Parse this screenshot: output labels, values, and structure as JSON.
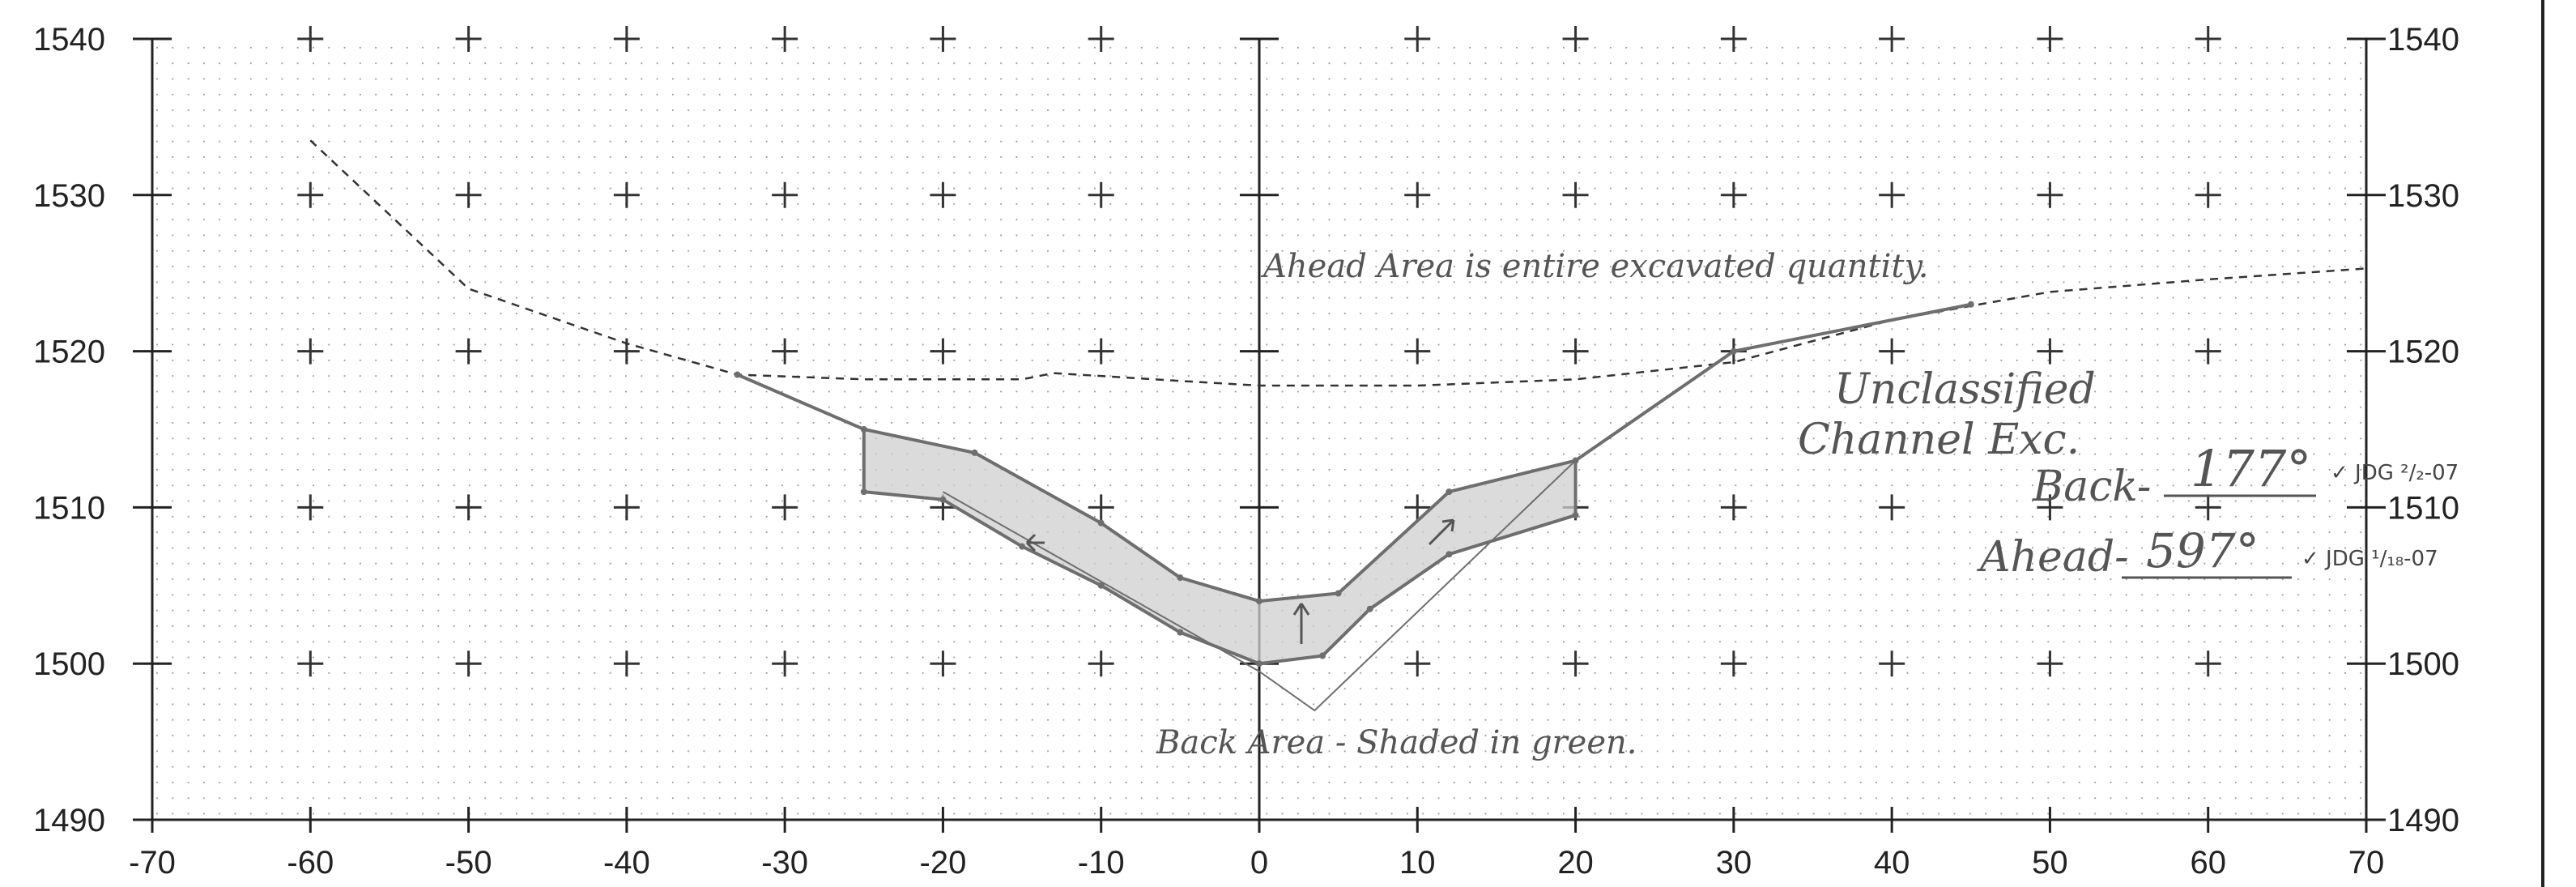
{
  "chart_data": {
    "type": "line",
    "xlim": [
      -70,
      70
    ],
    "ylim": [
      1490,
      1540
    ],
    "x_ticks": [
      -70,
      -60,
      -50,
      -40,
      -30,
      -20,
      -10,
      0,
      10,
      20,
      30,
      40,
      50,
      60,
      70
    ],
    "y_ticks": [
      1490,
      1500,
      1510,
      1520,
      1530,
      1540
    ],
    "grid": true,
    "series": [
      {
        "style": "dashed",
        "x": [
          -60,
          -50,
          -40,
          -33,
          -25,
          -15,
          -13,
          -5,
          0,
          10,
          20,
          30,
          40,
          50,
          60,
          70
        ],
        "y": [
          1533.5,
          1524,
          1520.5,
          1518.5,
          1518.2,
          1518.2,
          1518.6,
          1518.1,
          1517.8,
          1517.8,
          1518.2,
          1519.3,
          1522,
          1523.8,
          1524.6,
          1525.3
        ]
      },
      {
        "style": "solid",
        "x": [
          -33,
          -25,
          -18,
          -10,
          -5,
          0,
          5,
          12,
          20,
          30,
          45
        ],
        "y": [
          1518.5,
          1515,
          1513.5,
          1509,
          1505.5,
          1504,
          1504.5,
          1511,
          1513,
          1520,
          1523
        ]
      },
      {
        "style": "solid",
        "x": [
          -25,
          -20,
          -15,
          -10,
          -5,
          0,
          4,
          7,
          12,
          20
        ],
        "y": [
          1511,
          1510.5,
          1507.5,
          1505,
          1502,
          1500,
          1500.5,
          1503.5,
          1507,
          1509.5
        ]
      },
      {
        "style": "solid-thin",
        "x": [
          -20,
          0,
          3.5,
          20
        ],
        "y": [
          1511,
          1499.5,
          1497,
          1513
        ]
      }
    ],
    "annotations": {
      "ahead_note": "Ahead Area is entire excavated quantity.",
      "title_line1": "Unclassified",
      "title_line2": "Channel Exc.",
      "back_label": "Back-",
      "back_value": "177°",
      "back_check": "✓ JDG ²/₂-07",
      "ahead_label": "Ahead-",
      "ahead_value": "597°",
      "ahead_check": "✓ JDG ¹/₁₈-07",
      "back_area_note": "Back Area - Shaded in green."
    },
    "colors": {
      "axis": "#222222",
      "grid_dot": "#9a9a9a",
      "ground": "#333333",
      "template": "#6e6e6e",
      "shade": "#cfcfcf",
      "annotation": "#555555"
    }
  }
}
